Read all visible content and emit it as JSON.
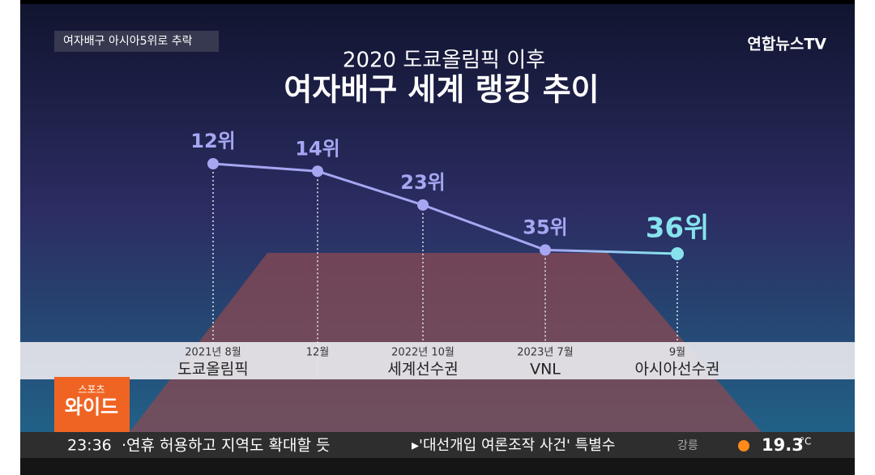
{
  "header": {
    "badge": "여자배구 아시아5위로 추락",
    "logo": "연합뉴스TV"
  },
  "chart_data": {
    "type": "line",
    "title": "2020 도쿄올림픽 이후",
    "subtitle": "여자배구 세계 랭킹 추이",
    "categories": [
      "2021년 8월",
      "12월",
      "2022년 10월",
      "2023년 7월",
      "9월"
    ],
    "category_notes": [
      "도쿄올림픽",
      null,
      "세계선수권",
      "VNL",
      "아시아선수권"
    ],
    "values": [
      12,
      14,
      23,
      35,
      36
    ],
    "value_labels": [
      "12위",
      "14위",
      "23위",
      "35위",
      "36위"
    ],
    "color": "#a6a6f2",
    "highlight_color": "#86e3ee",
    "y_inverted": true
  },
  "ticker": {
    "program_top": "스포츠",
    "program": "와이드",
    "time": "23:36",
    "headline_1": "·연휴 허용하고 지역도 확대할 듯",
    "headline_2": "▸'대선개입 여론조작 사건' 특별수",
    "city": "강릉",
    "temperature": 19.3,
    "unit": "°C"
  }
}
